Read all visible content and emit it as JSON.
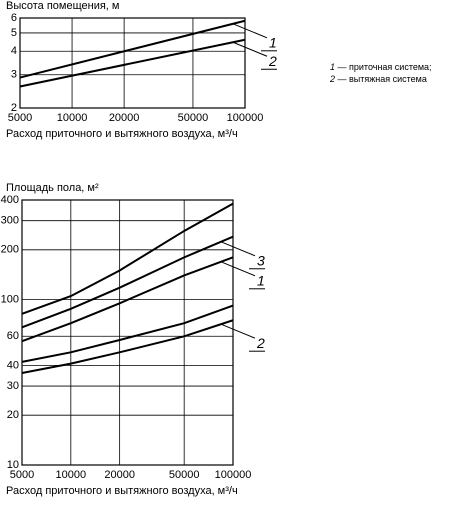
{
  "chart_data": [
    {
      "type": "line",
      "title": "Высота помещения, м",
      "x_label": "Расход приточного и вытяжного воздуха, м³/ч",
      "x": [
        5000,
        100000
      ],
      "xlog": true,
      "ylog": true,
      "grid": true,
      "xlim": [
        5000,
        100000
      ],
      "xticks": [
        5000,
        10000,
        20000,
        50000,
        100000
      ],
      "ylim": [
        2,
        6
      ],
      "yticks": [
        2,
        3,
        4,
        5,
        6
      ],
      "series": [
        {
          "label": "1",
          "color": "#000000",
          "values": [
            2.9,
            5.8
          ]
        },
        {
          "label": "2",
          "color": "#000000",
          "values": [
            2.6,
            4.6
          ]
        }
      ],
      "notes": [
        {
          "number": "1",
          "text": " — приточная система;"
        },
        {
          "number": "2",
          "text": " — вытяжная система"
        }
      ]
    },
    {
      "type": "line",
      "title": "Площадь пола, м²",
      "x_label": "Расход приточного и вытяжного воздуха, м³/ч",
      "x": [
        5000,
        10000,
        20000,
        50000,
        100000
      ],
      "xlog": true,
      "ylog": true,
      "grid": true,
      "xlim": [
        5000,
        100000
      ],
      "xticks": [
        5000,
        10000,
        20000,
        50000,
        100000
      ],
      "ylim": [
        10,
        400
      ],
      "yticks": [
        10,
        20,
        30,
        40,
        60,
        100,
        200,
        300,
        400
      ],
      "series": [
        {
          "color": "#000000",
          "values": [
            82,
            105,
            150,
            260,
            380
          ]
        },
        {
          "label": "3",
          "color": "#000000",
          "values": [
            68,
            88,
            118,
            180,
            240
          ]
        },
        {
          "label": "1",
          "color": "#000000",
          "values": [
            56,
            72,
            95,
            140,
            180
          ]
        },
        {
          "color": "#000000",
          "values": [
            42,
            48,
            57,
            72,
            92
          ]
        },
        {
          "label": "2",
          "color": "#000000",
          "values": [
            36,
            41,
            48,
            60,
            75
          ]
        }
      ]
    }
  ]
}
